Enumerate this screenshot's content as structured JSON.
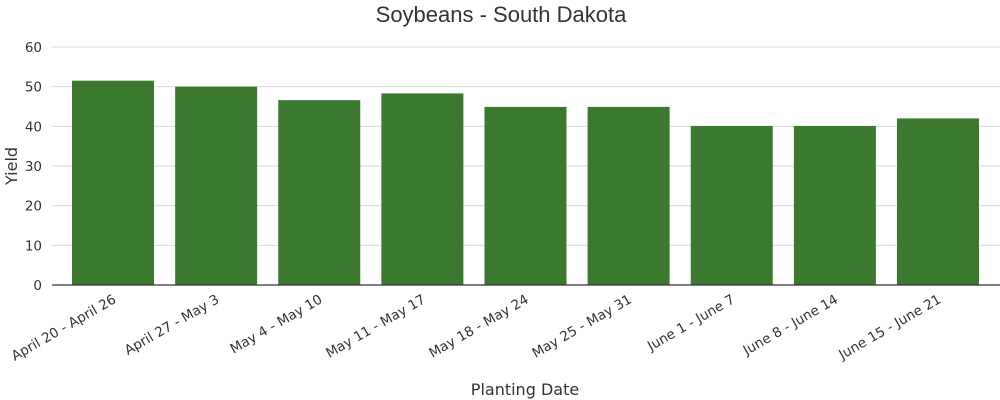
{
  "chart_data": {
    "type": "bar",
    "title": "Soybeans - South Dakota",
    "xlabel": "Planting Date",
    "ylabel": "Yield",
    "categories": [
      "April 20 - April 26",
      "April 27 - May 3",
      "May 4 - May 10",
      "May 11 - May 17",
      "May 18 - May 24",
      "May 25 - May 31",
      "June 1 - June 7",
      "June 8 - June 14",
      "June 15 - June 21"
    ],
    "values": [
      51.5,
      50,
      46.6,
      48.3,
      44.9,
      44.9,
      40.1,
      40.1,
      42
    ],
    "ylim": [
      0,
      60
    ],
    "yticks": [
      0,
      10,
      20,
      30,
      40,
      50,
      60
    ],
    "grid": true,
    "colors": {
      "bar": "#3b7a2e"
    }
  }
}
